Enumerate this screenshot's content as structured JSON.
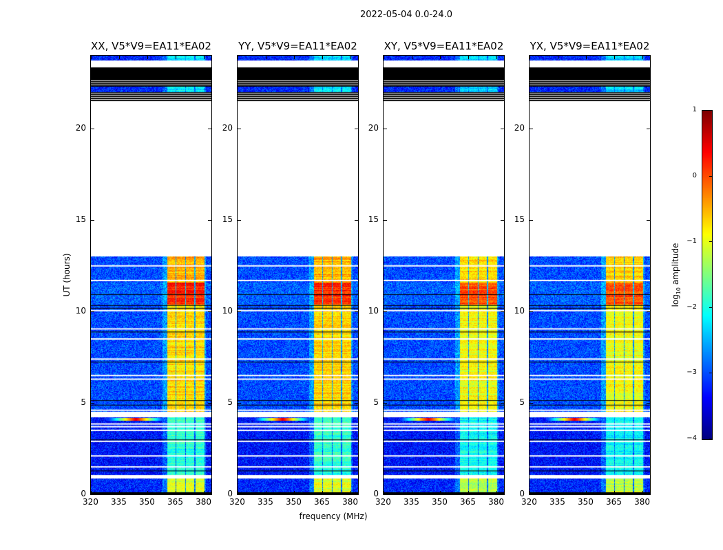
{
  "suptitle": "2022-05-04 0.0-24.0",
  "chart_data": {
    "type": "heatmap",
    "title": "2022-05-04 0.0-24.0",
    "xlabel": "frequency (MHz)",
    "ylabel": "UT (hours)",
    "xlim": [
      320,
      384
    ],
    "ylim": [
      0,
      24
    ],
    "xticks": [
      320,
      335,
      350,
      365,
      380
    ],
    "yticks": [
      0,
      5,
      10,
      15,
      20
    ],
    "panels": [
      {
        "title": "XX, V5*V9=EA11*EA02"
      },
      {
        "title": "YY, V5*V9=EA11*EA02"
      },
      {
        "title": "XY, V5*V9=EA11*EA02"
      },
      {
        "title": "YX, V5*V9=EA11*EA02"
      }
    ],
    "colorbar": {
      "label": "log10 amplitude",
      "label_main": "log",
      "label_sub": "10",
      "label_rest": " amplitude",
      "range": [
        -4,
        1
      ],
      "ticks": [
        "1",
        "0",
        "−1",
        "−2",
        "−3",
        "−4"
      ],
      "tick_values": [
        1,
        0,
        -1,
        -2,
        -3,
        -4
      ],
      "colormap": "jet"
    },
    "channel_blocks_mhz": [
      [
        360.5,
        365
      ],
      [
        365.5,
        370
      ],
      [
        370.5,
        375
      ],
      [
        375.5,
        380.5
      ]
    ],
    "time_segments": [
      {
        "start": 0.0,
        "end": 0.12,
        "state": "flagged-black"
      },
      {
        "start": 0.12,
        "end": 0.85,
        "state": "data",
        "background": -3.2,
        "channels": -1.0
      },
      {
        "start": 0.85,
        "end": 1.05,
        "state": "flagged-white"
      },
      {
        "start": 1.05,
        "end": 4.2,
        "state": "data",
        "background": -3.3,
        "channels": -1.9
      },
      {
        "start": 4.2,
        "end": 4.5,
        "state": "flagged-white"
      },
      {
        "start": 4.5,
        "end": 10.4,
        "state": "data",
        "background": -3.0,
        "channels": -0.7
      },
      {
        "start": 10.4,
        "end": 11.6,
        "state": "data",
        "background": -2.9,
        "channels": 0.2
      },
      {
        "start": 11.6,
        "end": 13.0,
        "state": "data",
        "background": -3.0,
        "channels": -0.5
      },
      {
        "start": 13.0,
        "end": 21.5,
        "state": "flagged-white"
      },
      {
        "start": 21.5,
        "end": 22.0,
        "state": "flagged-lines"
      },
      {
        "start": 22.0,
        "end": 22.3,
        "state": "data",
        "background": -3.2,
        "channels": -2.1
      },
      {
        "start": 22.3,
        "end": 22.7,
        "state": "flagged-lines"
      },
      {
        "start": 22.7,
        "end": 23.35,
        "state": "flagged-black"
      },
      {
        "start": 23.35,
        "end": 23.75,
        "state": "flagged-white"
      },
      {
        "start": 23.75,
        "end": 24.0,
        "state": "data",
        "background": -3.2,
        "channels": -2.2
      }
    ],
    "white_lines_hours": [
      1.5,
      2.1,
      2.9,
      3.5,
      3.7,
      3.85,
      4.6,
      6.3,
      6.5,
      7.4,
      8.5,
      9.05,
      10.05,
      11.7,
      12.5
    ],
    "black_lines_hours": [
      1.3,
      3.0,
      4.9,
      5.15,
      7.25,
      8.9,
      10.2,
      10.35,
      10.95
    ],
    "rfi_spike": {
      "freq_mhz": 344,
      "time_hours": 4.1,
      "value": 0.5
    }
  }
}
